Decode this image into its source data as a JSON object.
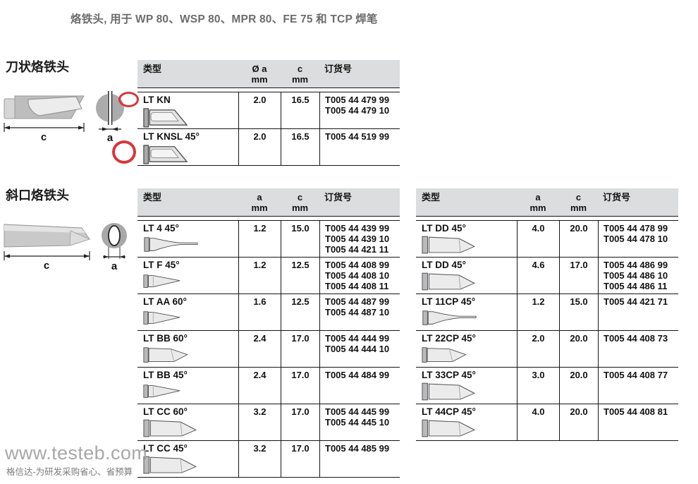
{
  "page": {
    "title": "烙铁头, 用于 WP 80、WSP 80、MPR 80、FE 75 和 TCP 焊笔"
  },
  "sections": {
    "knife": {
      "heading": "刀状烙铁头",
      "dim_length": "c",
      "dim_width": "a"
    },
    "bevel": {
      "heading": "斜口烙铁头",
      "dim_length": "c",
      "dim_width": "a"
    }
  },
  "tables": {
    "knife_table": {
      "headers": [
        {
          "label": "类型",
          "sub": ""
        },
        {
          "label": "Ø a",
          "sub": "mm"
        },
        {
          "label": "c",
          "sub": "mm"
        },
        {
          "label": "订货号",
          "sub": ""
        }
      ],
      "rows": [
        {
          "type": "LT KN",
          "icon": "knife-tip-icon",
          "a": "2.0",
          "c": "16.5",
          "orders": [
            "T005 44 479 99",
            "T005 44 479 10"
          ],
          "annotated": true
        },
        {
          "type": "LT KNSL 45°",
          "icon": "knife-tip-icon",
          "a": "2.0",
          "c": "16.5",
          "orders": [
            "T005 44 519 99"
          ],
          "annotated": true
        }
      ]
    },
    "bevel_table_left": {
      "headers": [
        {
          "label": "类型",
          "sub": ""
        },
        {
          "label": "a",
          "sub": "mm"
        },
        {
          "label": "c",
          "sub": "mm"
        },
        {
          "label": "订货号",
          "sub": ""
        }
      ],
      "rows": [
        {
          "type": "LT 4 45°",
          "icon": "thin-taper-tip-icon",
          "a": "1.2",
          "c": "15.0",
          "orders": [
            "T005 44 439 99",
            "T005 44 439 10",
            "T005 44 421 11"
          ]
        },
        {
          "type": "LT F 45°",
          "icon": "taper-tip-icon",
          "a": "1.2",
          "c": "12.5",
          "orders": [
            "T005 44 408 99",
            "T005 44 408 10",
            "T005 44 408 11"
          ]
        },
        {
          "type": "LT AA 60°",
          "icon": "taper-tip-icon",
          "a": "1.6",
          "c": "12.5",
          "orders": [
            "T005 44 487 99",
            "T005 44 487 10"
          ]
        },
        {
          "type": "LT BB 60°",
          "icon": "bevel-cyl-tip-icon",
          "a": "2.4",
          "c": "17.0",
          "orders": [
            "T005 44 444 99",
            "T005 44 444 10"
          ]
        },
        {
          "type": "LT BB 45°",
          "icon": "taper-tip-icon",
          "a": "2.4",
          "c": "17.0",
          "orders": [
            "T005 44 484 99"
          ]
        },
        {
          "type": "LT CC 60°",
          "icon": "wide-bevel-cyl-tip-icon",
          "a": "3.2",
          "c": "17.0",
          "orders": [
            "T005 44 445 99",
            "T005 44 445 10"
          ]
        },
        {
          "type": "LT CC 45°",
          "icon": "wide-bevel-cyl-tip-icon",
          "a": "3.2",
          "c": "17.0",
          "orders": [
            "T005 44 485 99"
          ]
        }
      ]
    },
    "bevel_table_right": {
      "headers": [
        {
          "label": "类型",
          "sub": ""
        },
        {
          "label": "a",
          "sub": "mm"
        },
        {
          "label": "c",
          "sub": "mm"
        },
        {
          "label": "订货号",
          "sub": ""
        }
      ],
      "rows": [
        {
          "type": "LT DD 45°",
          "icon": "wide-bevel-cyl-tip-icon",
          "a": "4.0",
          "c": "20.0",
          "orders": [
            "T005 44 478 99",
            "T005 44 478 10"
          ]
        },
        {
          "type": "LT DD 45°",
          "icon": "wide-bevel-cyl-tip-icon",
          "a": "4.6",
          "c": "17.0",
          "orders": [
            "T005 44 486 99",
            "T005 44 486 10",
            "T005 44 486 11"
          ]
        },
        {
          "type": "LT 11CP 45°",
          "icon": "thin-taper-tip-icon",
          "a": "1.2",
          "c": "15.0",
          "orders": [
            "T005 44 421 71"
          ]
        },
        {
          "type": "LT 22CP 45°",
          "icon": "bevel-cyl-tip-icon",
          "a": "2.0",
          "c": "20.0",
          "orders": [
            "T005 44 408 73"
          ]
        },
        {
          "type": "LT 33CP 45°",
          "icon": "wide-bevel-cyl-tip-icon",
          "a": "3.0",
          "c": "20.0",
          "orders": [
            "T005 44 408 77"
          ]
        },
        {
          "type": "LT 44CP 45°",
          "icon": "wide-bevel-cyl-tip-icon",
          "a": "4.0",
          "c": "20.0",
          "orders": [
            "T005 44 408 81"
          ]
        }
      ]
    }
  },
  "footer": {
    "site": "www.testeb.com",
    "slogan": "格信达-为研发采购省心、省预算"
  },
  "colors": {
    "annotation_red": "#d8363a",
    "header_gray": "#dcddde"
  }
}
